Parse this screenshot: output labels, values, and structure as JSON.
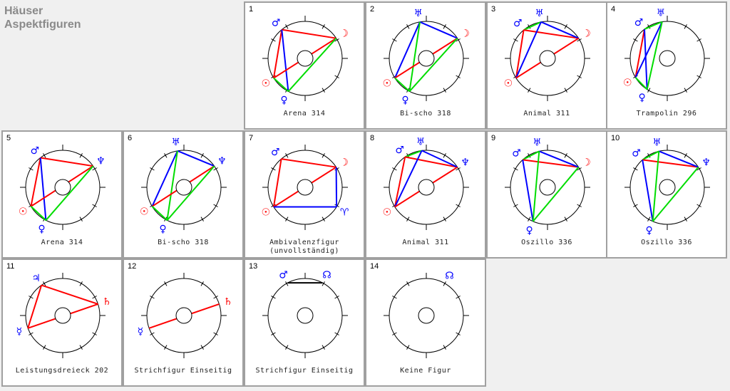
{
  "title": [
    "Häuser",
    "Aspektfiguren"
  ],
  "colors": {
    "red": "#ff0000",
    "blue": "#0000ff",
    "green": "#00dd00",
    "black": "#000000"
  },
  "cells": [
    {
      "num": "1",
      "label": "Arena 314",
      "planets": [
        {
          "g": "♂",
          "n": "mars",
          "c": "blue",
          "a": 129
        },
        {
          "g": "☽",
          "n": "moon",
          "c": "red",
          "a": 33
        },
        {
          "g": "☉",
          "n": "sun",
          "c": "red",
          "a": 212
        },
        {
          "g": "♀",
          "n": "venus",
          "c": "blue",
          "a": 243
        }
      ],
      "lines": [
        [
          0,
          1,
          "red"
        ],
        [
          0,
          2,
          "red"
        ],
        [
          0,
          3,
          "blue"
        ],
        [
          1,
          2,
          "red"
        ],
        [
          1,
          3,
          "green"
        ],
        [
          2,
          3,
          "green"
        ]
      ]
    },
    {
      "num": "2",
      "label": "Bi-scho 318",
      "planets": [
        {
          "g": "♅",
          "n": "uranus",
          "c": "blue",
          "a": 100
        },
        {
          "g": "☽",
          "n": "moon",
          "c": "red",
          "a": 33
        },
        {
          "g": "☉",
          "n": "sun",
          "c": "red",
          "a": 212
        },
        {
          "g": "♀",
          "n": "venus",
          "c": "blue",
          "a": 243
        }
      ],
      "lines": [
        [
          0,
          1,
          "blue"
        ],
        [
          0,
          2,
          "blue"
        ],
        [
          0,
          3,
          "green"
        ],
        [
          1,
          2,
          "red"
        ],
        [
          1,
          3,
          "green"
        ],
        [
          2,
          3,
          "green"
        ]
      ]
    },
    {
      "num": "3",
      "label": "Animal 311",
      "planets": [
        {
          "g": "♂",
          "n": "mars",
          "c": "blue",
          "a": 130
        },
        {
          "g": "♅",
          "n": "uranus",
          "c": "blue",
          "a": 100
        },
        {
          "g": "☽",
          "n": "moon",
          "c": "red",
          "a": 33
        },
        {
          "g": "☉",
          "n": "sun",
          "c": "red",
          "a": 212
        }
      ],
      "lines": [
        [
          0,
          1,
          "green"
        ],
        [
          0,
          2,
          "red"
        ],
        [
          0,
          3,
          "red"
        ],
        [
          1,
          2,
          "blue"
        ],
        [
          1,
          3,
          "blue"
        ],
        [
          2,
          3,
          "red"
        ]
      ]
    },
    {
      "num": "4",
      "label": "Trampolin 296",
      "planets": [
        {
          "g": "♂",
          "n": "mars",
          "c": "blue",
          "a": 128
        },
        {
          "g": "♅",
          "n": "uranus",
          "c": "blue",
          "a": 98
        },
        {
          "g": "☉",
          "n": "sun",
          "c": "red",
          "a": 211
        },
        {
          "g": "♀",
          "n": "venus",
          "c": "blue",
          "a": 237
        }
      ],
      "lines": [
        [
          0,
          1,
          "green"
        ],
        [
          0,
          2,
          "red"
        ],
        [
          0,
          3,
          "blue"
        ],
        [
          1,
          2,
          "blue"
        ],
        [
          1,
          3,
          "green"
        ],
        [
          2,
          3,
          "green"
        ]
      ]
    },
    {
      "num": "5",
      "label": "Arena 314",
      "planets": [
        {
          "g": "♂",
          "n": "mars",
          "c": "blue",
          "a": 127
        },
        {
          "g": "♆",
          "n": "neptune",
          "c": "blue",
          "a": 35
        },
        {
          "g": "☉",
          "n": "sun",
          "c": "red",
          "a": 211
        },
        {
          "g": "♀",
          "n": "venus",
          "c": "blue",
          "a": 243
        }
      ],
      "lines": [
        [
          0,
          1,
          "red"
        ],
        [
          0,
          2,
          "red"
        ],
        [
          0,
          3,
          "blue"
        ],
        [
          1,
          2,
          "red"
        ],
        [
          1,
          3,
          "green"
        ],
        [
          2,
          3,
          "green"
        ]
      ]
    },
    {
      "num": "6",
      "label": "Bi-scho 318",
      "planets": [
        {
          "g": "♅",
          "n": "uranus",
          "c": "blue",
          "a": 100
        },
        {
          "g": "♆",
          "n": "neptune",
          "c": "blue",
          "a": 35
        },
        {
          "g": "☉",
          "n": "sun",
          "c": "red",
          "a": 211
        },
        {
          "g": "♀",
          "n": "venus",
          "c": "blue",
          "a": 243
        }
      ],
      "lines": [
        [
          0,
          1,
          "blue"
        ],
        [
          0,
          2,
          "blue"
        ],
        [
          0,
          3,
          "green"
        ],
        [
          1,
          2,
          "red"
        ],
        [
          1,
          3,
          "green"
        ],
        [
          2,
          3,
          "green"
        ]
      ]
    },
    {
      "num": "7",
      "label": "Ambivalenzfigur\n(unvollständig)",
      "planets": [
        {
          "g": "♂",
          "n": "mars",
          "c": "blue",
          "a": 130
        },
        {
          "g": "☽",
          "n": "moon",
          "c": "red",
          "a": 33
        },
        {
          "g": "☉",
          "n": "sun",
          "c": "red",
          "a": 212
        },
        {
          "g": "♈",
          "n": "point",
          "c": "blue",
          "a": 328
        }
      ],
      "lines": [
        [
          0,
          1,
          "red"
        ],
        [
          0,
          2,
          "red"
        ],
        [
          1,
          2,
          "red"
        ],
        [
          1,
          3,
          "blue"
        ],
        [
          2,
          3,
          "blue"
        ]
      ]
    },
    {
      "num": "8",
      "label": "Animal 311",
      "planets": [
        {
          "g": "♂",
          "n": "mars",
          "c": "blue",
          "a": 125
        },
        {
          "g": "♅",
          "n": "uranus",
          "c": "blue",
          "a": 97
        },
        {
          "g": "♆",
          "n": "neptune",
          "c": "blue",
          "a": 33
        },
        {
          "g": "☉",
          "n": "sun",
          "c": "red",
          "a": 212
        }
      ],
      "lines": [
        [
          0,
          1,
          "green"
        ],
        [
          0,
          2,
          "red"
        ],
        [
          0,
          3,
          "red"
        ],
        [
          1,
          2,
          "blue"
        ],
        [
          1,
          3,
          "blue"
        ],
        [
          2,
          3,
          "red"
        ]
      ]
    },
    {
      "num": "9",
      "label": "Oszillo 336",
      "planets": [
        {
          "g": "♂",
          "n": "mars",
          "c": "blue",
          "a": 132
        },
        {
          "g": "♅",
          "n": "uranus",
          "c": "blue",
          "a": 103
        },
        {
          "g": "☽",
          "n": "moon",
          "c": "red",
          "a": 33
        },
        {
          "g": "♀",
          "n": "venus",
          "c": "blue",
          "a": 247
        }
      ],
      "lines": [
        [
          0,
          1,
          "green"
        ],
        [
          0,
          2,
          "red"
        ],
        [
          0,
          3,
          "blue"
        ],
        [
          1,
          2,
          "blue"
        ],
        [
          1,
          3,
          "green"
        ],
        [
          2,
          3,
          "green"
        ]
      ]
    },
    {
      "num": "10",
      "label": "Oszillo 336",
      "planets": [
        {
          "g": "♂",
          "n": "mars",
          "c": "blue",
          "a": 132
        },
        {
          "g": "♅",
          "n": "uranus",
          "c": "blue",
          "a": 103
        },
        {
          "g": "♆",
          "n": "neptune",
          "c": "blue",
          "a": 33
        },
        {
          "g": "♀",
          "n": "venus",
          "c": "blue",
          "a": 247
        }
      ],
      "lines": [
        [
          0,
          1,
          "green"
        ],
        [
          0,
          2,
          "red"
        ],
        [
          0,
          3,
          "blue"
        ],
        [
          1,
          2,
          "blue"
        ],
        [
          1,
          3,
          "green"
        ],
        [
          2,
          3,
          "green"
        ]
      ]
    },
    {
      "num": "11",
      "label": "Leistungsdreieck 202",
      "planets": [
        {
          "g": "♃",
          "n": "jupiter",
          "c": "blue",
          "a": 125
        },
        {
          "g": "♄",
          "n": "saturn",
          "c": "red",
          "a": 18
        },
        {
          "g": "☿",
          "n": "mercury",
          "c": "blue",
          "a": 200
        }
      ],
      "lines": [
        [
          0,
          1,
          "red"
        ],
        [
          0,
          2,
          "red"
        ],
        [
          1,
          2,
          "red"
        ]
      ]
    },
    {
      "num": "12",
      "label": "Strichfigur Einseitig",
      "planets": [
        {
          "g": "♄",
          "n": "saturn",
          "c": "red",
          "a": 18
        },
        {
          "g": "☿",
          "n": "mercury",
          "c": "blue",
          "a": 200
        }
      ],
      "lines": [
        [
          0,
          1,
          "red"
        ]
      ]
    },
    {
      "num": "13",
      "label": "Strichfigur Einseitig",
      "planets": [
        {
          "g": "♂",
          "n": "mars",
          "c": "blue",
          "a": 118
        },
        {
          "g": "☊",
          "n": "node",
          "c": "blue",
          "a": 62
        }
      ],
      "lines": [
        [
          0,
          1,
          "black"
        ]
      ]
    },
    {
      "num": "14",
      "label": "Keine Figur",
      "planets": [
        {
          "g": "☊",
          "n": "node",
          "c": "blue",
          "a": 60
        }
      ],
      "lines": []
    }
  ]
}
